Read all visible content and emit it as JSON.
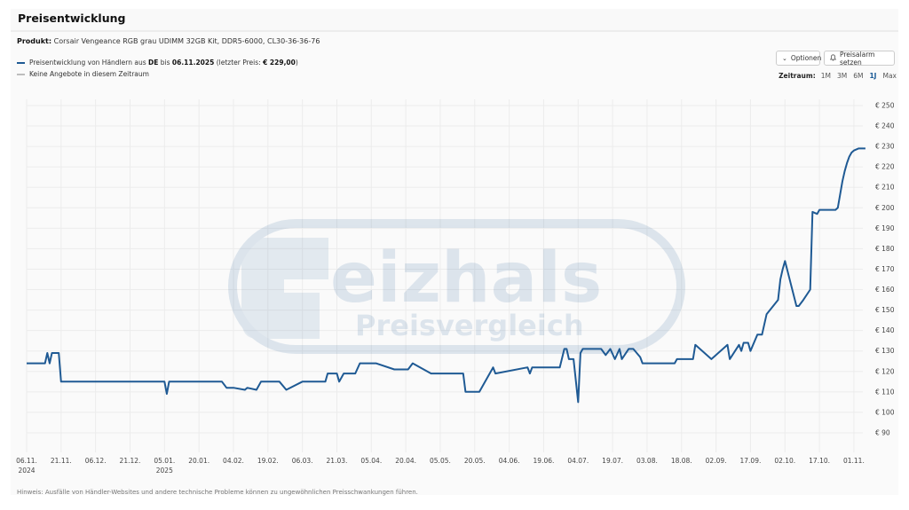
{
  "header": {
    "title": "Preisentwicklung"
  },
  "product": {
    "label": "Produkt:",
    "name": "Corsair Vengeance RGB grau UDIMM 32GB Kit, DDR5-6000, CL30-36-36-76"
  },
  "legend": {
    "series_prefix": "Preisentwicklung von Händlern aus ",
    "country": "DE",
    "until_text": " bis ",
    "until_date": "06.11.2025",
    "last_price_prefix": " (letzter Preis: ",
    "last_price": "€ 229,00",
    "last_price_suffix": ")",
    "no_offers": "Keine Angebote in diesem Zeitraum",
    "series_color": "#1f5a94",
    "no_offers_color": "#bdbdbd"
  },
  "toolbar": {
    "options_label": "Optionen",
    "alarm_label": "Preisalarm setzen"
  },
  "timerange": {
    "label": "Zeitraum:",
    "options": [
      "1M",
      "3M",
      "6M",
      "1J",
      "Max"
    ],
    "active": "1J"
  },
  "note": "Hinweis: Ausfälle von Händler-Websites und andere technische Probleme können zu ungewöhnlichen Preisschwankungen führen.",
  "watermark": {
    "brand": "Geizhals",
    "sub": "Preisvergleich"
  },
  "chart_data": {
    "type": "line",
    "title": "Preisentwicklung",
    "xlabel": "",
    "ylabel": "",
    "ylim": [
      85,
      252
    ],
    "y_ticks": [
      90,
      100,
      110,
      120,
      130,
      140,
      150,
      160,
      170,
      180,
      190,
      200,
      210,
      220,
      230,
      240,
      250
    ],
    "y_tick_labels": [
      "€ 90",
      "€ 100",
      "€ 110",
      "€ 120",
      "€ 130",
      "€ 140",
      "€ 150",
      "€ 160",
      "€ 170",
      "€ 180",
      "€ 190",
      "€ 200",
      "€ 210",
      "€ 220",
      "€ 230",
      "€ 240",
      "€ 250"
    ],
    "x_tick_labels": [
      "06.11.\n2024",
      "21.11.",
      "06.12.",
      "21.12.",
      "05.01.\n2025",
      "20.01.",
      "04.02.",
      "19.02.",
      "06.03.",
      "21.03.",
      "05.04.",
      "20.04.",
      "05.05.",
      "20.05.",
      "04.06.",
      "19.06.",
      "04.07.",
      "19.07.",
      "03.08.",
      "18.08.",
      "02.09.",
      "17.09.",
      "02.10.",
      "17.10.",
      "01.11."
    ],
    "grid": true,
    "legend_position": "top-left",
    "series": [
      {
        "name": "Preisentwicklung von Händlern aus DE",
        "color": "#1f5a94",
        "x_day_offset": [
          0,
          7,
          8,
          9,
          10,
          11,
          14,
          15,
          60,
          61,
          62,
          63,
          80,
          85,
          87,
          88,
          90,
          95,
          96,
          100,
          102,
          110,
          113,
          120,
          121,
          130,
          131,
          135,
          136,
          138,
          143,
          145,
          152,
          160,
          166,
          168,
          176,
          177,
          190,
          191,
          196,
          197,
          203,
          204,
          218,
          219,
          220,
          232,
          234,
          235,
          236,
          238,
          240,
          241,
          242,
          250,
          252,
          254,
          256,
          258,
          259,
          262,
          263,
          264,
          267,
          268,
          270,
          282,
          283,
          284,
          290,
          291,
          298,
          305,
          306,
          310,
          311,
          312,
          314,
          315,
          318,
          320,
          322,
          327,
          328,
          329,
          330,
          335,
          336,
          338,
          341,
          342,
          344,
          345,
          346,
          348,
          349,
          351,
          352,
          353,
          355,
          356,
          357,
          358,
          359,
          360,
          362,
          364,
          365
        ],
        "values": [
          124,
          124,
          124,
          129,
          124,
          129,
          129,
          115,
          115,
          109,
          115,
          115,
          115,
          115,
          112,
          112,
          112,
          111,
          112,
          111,
          115,
          115,
          111,
          115,
          115,
          115,
          119,
          119,
          115,
          119,
          119,
          124,
          124,
          121,
          121,
          124,
          119,
          119,
          119,
          110,
          110,
          110,
          122,
          119,
          122,
          119,
          122,
          122,
          131,
          131,
          126,
          126,
          105,
          129,
          131,
          131,
          128,
          131,
          126,
          131,
          126,
          131,
          131,
          131,
          127,
          124,
          124,
          124,
          126,
          126,
          126,
          133,
          126,
          133,
          126,
          133,
          130,
          134,
          134,
          130,
          138,
          138,
          148,
          155,
          165,
          170,
          174,
          152,
          152,
          155,
          160,
          198,
          197,
          199,
          199,
          199,
          199,
          199,
          199,
          200,
          213,
          218,
          222,
          225,
          227,
          228,
          229,
          229,
          229
        ]
      }
    ]
  }
}
